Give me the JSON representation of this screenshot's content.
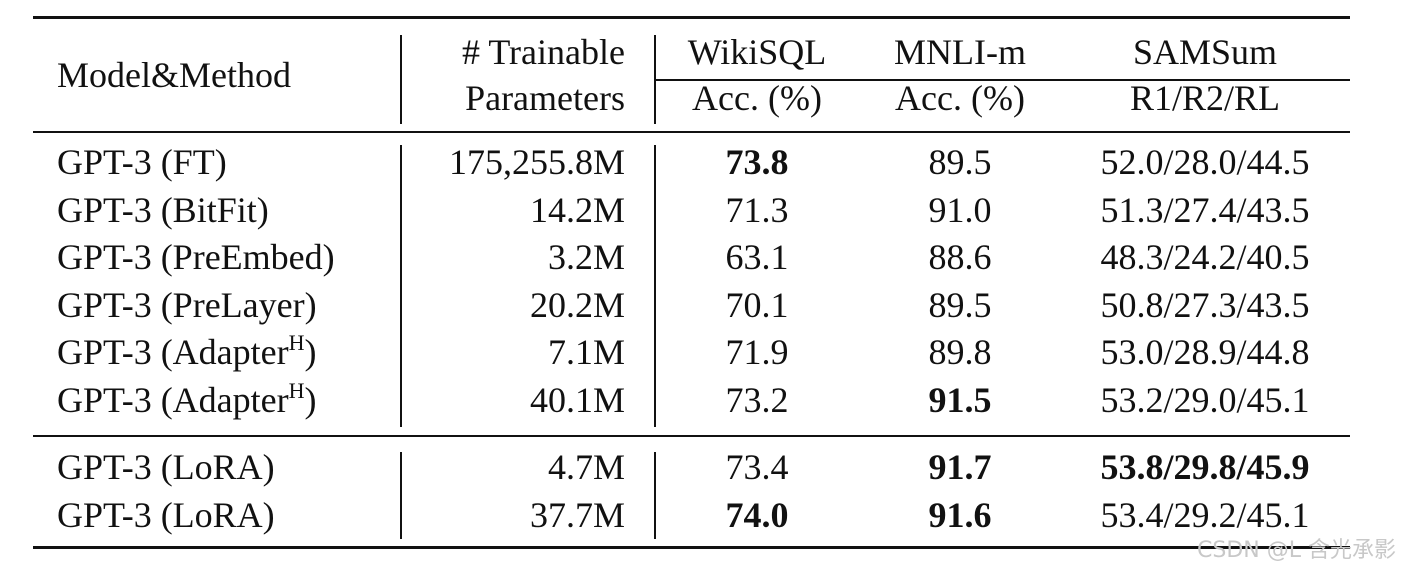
{
  "header": {
    "model": "Model&Method",
    "params": [
      "# Trainable",
      "Parameters"
    ],
    "groups": [
      {
        "name": "WikiSQL",
        "metric": "Acc. (%)"
      },
      {
        "name": "MNLI-m",
        "metric": "Acc. (%)"
      },
      {
        "name": "SAMSum",
        "metric": "R1/R2/RL"
      }
    ]
  },
  "sections": [
    {
      "rows": [
        {
          "model": "GPT-3 (FT)",
          "params": "175,255.8M",
          "cells": [
            "73.8",
            "89.5",
            "52.0/28.0/44.5"
          ],
          "bold": [
            0
          ]
        },
        {
          "model": "GPT-3 (BitFit)",
          "params": "14.2M",
          "cells": [
            "71.3",
            "91.0",
            "51.3/27.4/43.5"
          ],
          "bold": []
        },
        {
          "model": "GPT-3 (PreEmbed)",
          "params": "3.2M",
          "cells": [
            "63.1",
            "88.6",
            "48.3/24.2/40.5"
          ],
          "bold": []
        },
        {
          "model": "GPT-3 (PreLayer)",
          "params": "20.2M",
          "cells": [
            "70.1",
            "89.5",
            "50.8/27.3/43.5"
          ],
          "bold": []
        },
        {
          "model": "GPT-3 (Adapter",
          "model_sup": "H",
          "model_tail": ")",
          "params": "7.1M",
          "cells": [
            "71.9",
            "89.8",
            "53.0/28.9/44.8"
          ],
          "bold": []
        },
        {
          "model": "GPT-3 (Adapter",
          "model_sup": "H",
          "model_tail": ")",
          "params": "40.1M",
          "cells": [
            "73.2",
            "91.5",
            "53.2/29.0/45.1"
          ],
          "bold": [
            1
          ]
        }
      ]
    },
    {
      "rows": [
        {
          "model": "GPT-3 (LoRA)",
          "params": "4.7M",
          "cells": [
            "73.4",
            "91.7",
            "53.8/29.8/45.9"
          ],
          "bold": [
            1,
            2
          ]
        },
        {
          "model": "GPT-3 (LoRA)",
          "params": "37.7M",
          "cells": [
            "74.0",
            "91.6",
            "53.4/29.2/45.1"
          ],
          "bold": [
            0,
            1
          ]
        }
      ]
    }
  ],
  "watermark": "CSDN @L 含光承影"
}
